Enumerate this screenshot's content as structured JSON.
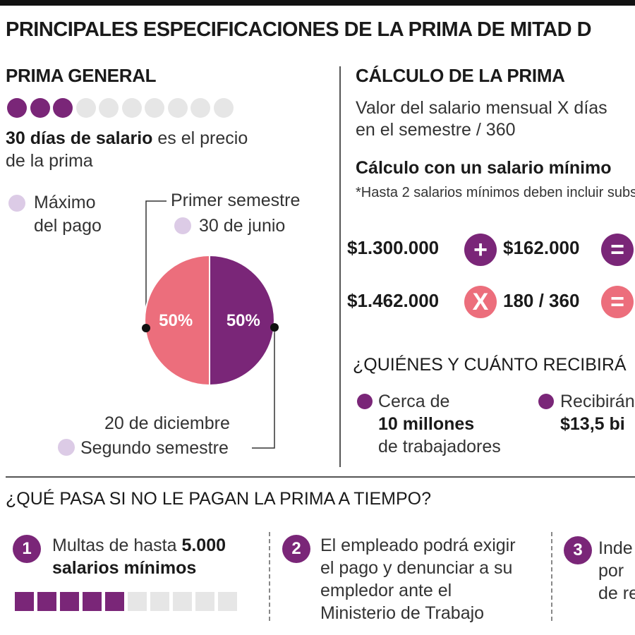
{
  "title": "PRINCIPALES ESPECIFICACIONES DE LA PRIMA DE MITAD D",
  "colors": {
    "purple": "#7a2678",
    "pink": "#ec6e7c",
    "light_gray": "#e6e6e6",
    "light_purple": "#dccbe6"
  },
  "prima_general": {
    "heading": "PRIMA GENERAL",
    "dots_filled": 3,
    "dots_total": 10,
    "desc_bold": "30 días de salario",
    "desc_rest": " es el precio",
    "desc_line2": "de la prima",
    "legend_line1": "Máximo",
    "legend_line2": "del pago",
    "first_semester": "Primer semestre",
    "first_date": "30 de junio",
    "second_date": "20 de diciembre",
    "second_semester": "Segundo semestre"
  },
  "chart_data": {
    "type": "pie",
    "slices": [
      {
        "label": "50%",
        "value": 50,
        "color": "#ec6e7c"
      },
      {
        "label": "50%",
        "value": 50,
        "color": "#7a2678"
      }
    ]
  },
  "calculo": {
    "heading": "CÁLCULO DE LA PRIMA",
    "formula_line1": "Valor del salario mensual X días",
    "formula_line2": "en el semestre / 360",
    "subheading": "Cálculo con un salario mínimo",
    "note": "*Hasta 2 salarios mínimos deben incluir subs",
    "row1": {
      "a": "$1.300.000",
      "op1": "+",
      "b": "$162.000",
      "op2": "="
    },
    "row2": {
      "a": "$1.462.000",
      "op1": "X",
      "b": "180 / 360",
      "op2": "="
    }
  },
  "quienes": {
    "heading": "¿QUIÉNES Y CUÁNTO RECIBIRÁ",
    "item1_line1": "Cerca de",
    "item1_bold": "10 millones",
    "item1_line3": "de trabajadores",
    "item2_line1": "Recibirán",
    "item2_bold": "$13,5 bi"
  },
  "que_pasa": {
    "heading": "¿QUÉ PASA SI NO LE PAGAN LA PRIMA A TIEMPO?",
    "items": [
      {
        "number": "1",
        "line1_plain": "Multas de hasta ",
        "line1_bold": "5.000",
        "line2_bold": "salarios mínimos"
      },
      {
        "number": "2",
        "line1": "El empleado podrá exigir",
        "line2": "el pago y denunciar a su",
        "line3": "empledor ante el",
        "line4": "Ministerio de Trabajo"
      },
      {
        "number": "3",
        "line1": "Inde",
        "line2": "por",
        "line3": "de re"
      }
    ],
    "bar_filled": 5,
    "bar_total": 10
  }
}
